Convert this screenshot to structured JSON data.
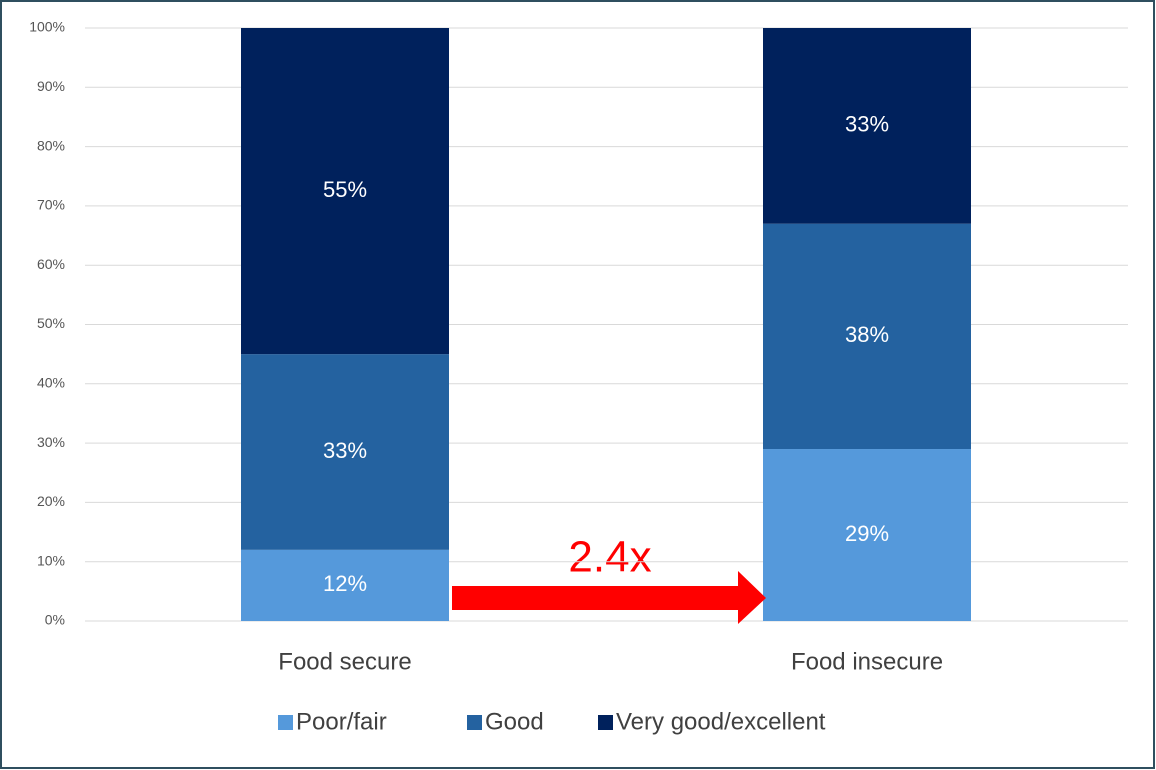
{
  "chart_data": {
    "type": "bar",
    "stacked": true,
    "categories": [
      "Food secure",
      "Food insecure"
    ],
    "series": [
      {
        "name": "Poor/fair",
        "color": "#5599db",
        "values": [
          12,
          29
        ],
        "value_labels": [
          "12%",
          "29%"
        ]
      },
      {
        "name": "Good",
        "color": "#2462a0",
        "values": [
          33,
          38
        ],
        "value_labels": [
          "33%",
          "38%"
        ]
      },
      {
        "name": "Very good/excellent",
        "color": "#00215c",
        "values": [
          55,
          33
        ],
        "value_labels": [
          "55%",
          "33%"
        ]
      }
    ],
    "ylim": [
      0,
      100
    ],
    "yticks": [
      {
        "value": 0,
        "label": "0%"
      },
      {
        "value": 10,
        "label": "10%"
      },
      {
        "value": 20,
        "label": "20%"
      },
      {
        "value": 30,
        "label": "30%"
      },
      {
        "value": 40,
        "label": "40%"
      },
      {
        "value": 50,
        "label": "50%"
      },
      {
        "value": 60,
        "label": "60%"
      },
      {
        "value": 70,
        "label": "70%"
      },
      {
        "value": 80,
        "label": "80%"
      },
      {
        "value": 90,
        "label": "90%"
      },
      {
        "value": 100,
        "label": "100%"
      }
    ],
    "grid": true,
    "legend": "bottom",
    "annotation": "2.4x"
  }
}
